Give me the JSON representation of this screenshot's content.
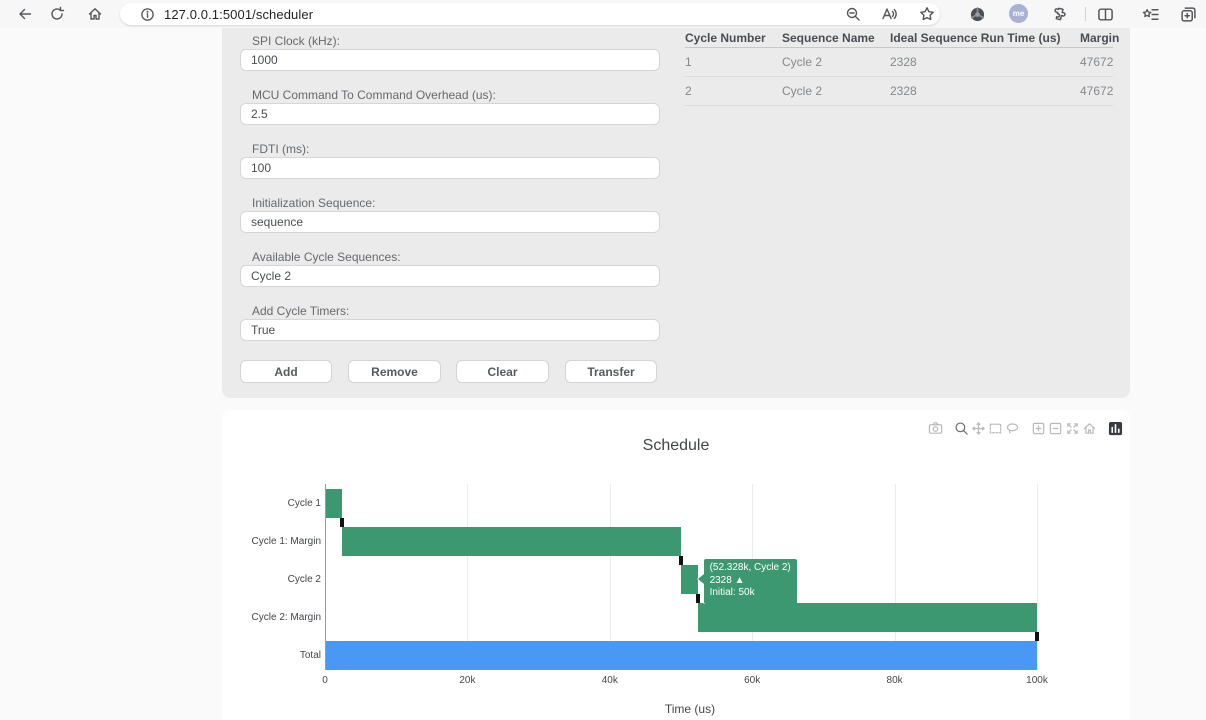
{
  "browser": {
    "url": "127.0.0.1:5001/scheduler",
    "avatar_label": "me",
    "toolbar_icons": [
      "back",
      "refresh",
      "home",
      "site-info",
      "zoom-out-page",
      "read-aloud",
      "favorite-star",
      "extension-badge",
      "profile-avatar",
      "extensions-puzzle",
      "split-screen",
      "favorites-list",
      "collections-add"
    ]
  },
  "form": {
    "fields": [
      {
        "label": "SPI Clock (kHz):",
        "value": "1000"
      },
      {
        "label": "MCU Command To Command Overhead (us):",
        "value": "2.5"
      },
      {
        "label": "FDTI (ms):",
        "value": "100"
      },
      {
        "label": "Initialization Sequence:",
        "value": "sequence"
      },
      {
        "label": "Available Cycle Sequences:",
        "value": "Cycle 2"
      },
      {
        "label": "Add Cycle Timers:",
        "value": "True"
      }
    ],
    "buttons": [
      "Add",
      "Remove",
      "Clear",
      "Transfer"
    ]
  },
  "table": {
    "headers": [
      "Cycle Number",
      "Sequence Name",
      "Ideal Sequence Run Time (us)",
      "Margin"
    ],
    "rows": [
      [
        "1",
        "Cycle 2",
        "2328",
        "47672"
      ],
      [
        "2",
        "Cycle 2",
        "2328",
        "47672"
      ]
    ]
  },
  "chart_data": {
    "type": "bar",
    "orientation": "horizontal",
    "title": "Schedule",
    "xlabel": "Time (us)",
    "xlim": [
      0,
      100000
    ],
    "grid": true,
    "legend": "none",
    "categories": [
      "Cycle 1",
      "Cycle 1: Margin",
      "Cycle 2",
      "Cycle 2: Margin",
      "Total"
    ],
    "rows": [
      {
        "label": "Cycle 1",
        "start": 0,
        "end": 2328,
        "color_key": "green"
      },
      {
        "label": "Cycle 1: Margin",
        "start": 2328,
        "end": 50000,
        "color_key": "green"
      },
      {
        "label": "Cycle 2",
        "start": 50000,
        "end": 52328,
        "color_key": "green"
      },
      {
        "label": "Cycle 2: Margin",
        "start": 52328,
        "end": 100000,
        "color_key": "green"
      },
      {
        "label": "Total",
        "start": 0,
        "end": 100000,
        "color_key": "blue"
      }
    ],
    "end_markers": [
      {
        "row": 0,
        "value": 2328
      },
      {
        "row": 1,
        "value": 50000
      },
      {
        "row": 2,
        "value": 52328
      },
      {
        "row": 3,
        "value": 100000
      }
    ],
    "xticks": [
      {
        "value": 0,
        "label": "0"
      },
      {
        "value": 20000,
        "label": "20k"
      },
      {
        "value": 40000,
        "label": "40k"
      },
      {
        "value": 60000,
        "label": "60k"
      },
      {
        "value": 80000,
        "label": "80k"
      },
      {
        "value": 100000,
        "label": "100k"
      }
    ],
    "colors": {
      "green": "#3C9870",
      "blue": "#4999F4",
      "marker": "#111111"
    },
    "tooltip": {
      "row": 2,
      "value": 52328,
      "lines": [
        "(52.328k, Cycle 2)",
        "2328 ▲",
        "Initial: 50k"
      ],
      "color": "#3C9870"
    },
    "modebar_icons": [
      "camera",
      "zoom",
      "pan",
      "box-select",
      "lasso-select",
      "zoom-in",
      "zoom-out",
      "autoscale",
      "reset-axes",
      "plotly-logo"
    ]
  }
}
